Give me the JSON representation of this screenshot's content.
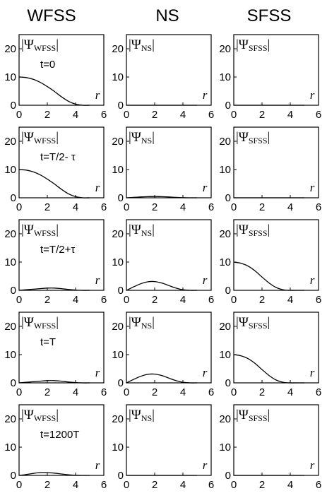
{
  "figure": {
    "column_titles": [
      "WFSS",
      "NS",
      "SFSS"
    ]
  },
  "chart_data": [
    {
      "type": "line",
      "row": 0,
      "col": 0,
      "label": "|Ψ",
      "label_sub": "WFSS",
      "time_label": "t=0",
      "xlabel": "r",
      "xlim": [
        0,
        6
      ],
      "ylim": [
        0,
        25
      ],
      "xticks": [
        "0",
        "2",
        "4",
        "6"
      ],
      "yticks": [
        "0",
        "10",
        "20"
      ],
      "series": [
        {
          "x": [
            0,
            0.5,
            1,
            1.5,
            2,
            2.5,
            3,
            3.5,
            4,
            4.5,
            5
          ],
          "y": [
            10,
            9.8,
            9.2,
            8.1,
            6.6,
            4.9,
            3.0,
            1.4,
            0.4,
            0,
            0
          ]
        }
      ]
    },
    {
      "type": "line",
      "row": 0,
      "col": 1,
      "label": "|Ψ",
      "label_sub": "NS",
      "time_label": "",
      "xlabel": "r",
      "xlim": [
        0,
        6
      ],
      "ylim": [
        0,
        25
      ],
      "xticks": [
        "0",
        "2",
        "4",
        "6"
      ],
      "yticks": [
        "0",
        "10",
        "20"
      ],
      "series": [
        {
          "x": [
            0,
            5
          ],
          "y": [
            0,
            0
          ]
        }
      ]
    },
    {
      "type": "line",
      "row": 0,
      "col": 2,
      "label": "|Ψ",
      "label_sub": "SFSS",
      "time_label": "",
      "xlabel": "r",
      "xlim": [
        0,
        6
      ],
      "ylim": [
        0,
        25
      ],
      "xticks": [
        "0",
        "2",
        "4",
        "6"
      ],
      "yticks": [
        "0",
        "10",
        "20"
      ],
      "series": [
        {
          "x": [
            0,
            5
          ],
          "y": [
            0,
            0
          ]
        }
      ]
    },
    {
      "type": "line",
      "row": 1,
      "col": 0,
      "label": "|Ψ",
      "label_sub": "WFSS",
      "time_label": "t=T/2- τ",
      "xlabel": "r",
      "xlim": [
        0,
        6
      ],
      "ylim": [
        0,
        25
      ],
      "xticks": [
        "0",
        "2",
        "4",
        "6"
      ],
      "yticks": [
        "0",
        "10",
        "20"
      ],
      "series": [
        {
          "x": [
            0,
            0.5,
            1,
            1.5,
            2,
            2.5,
            3,
            3.5,
            4,
            4.5,
            5
          ],
          "y": [
            10,
            9.8,
            9.2,
            8.1,
            6.6,
            4.9,
            3.0,
            1.4,
            0.4,
            0,
            0
          ]
        }
      ]
    },
    {
      "type": "line",
      "row": 1,
      "col": 1,
      "label": "|Ψ",
      "label_sub": "NS",
      "time_label": "",
      "xlabel": "r",
      "xlim": [
        0,
        6
      ],
      "ylim": [
        0,
        25
      ],
      "xticks": [
        "0",
        "2",
        "4",
        "6"
      ],
      "yticks": [
        "0",
        "10",
        "20"
      ],
      "series": [
        {
          "x": [
            0,
            0.5,
            1,
            1.5,
            2,
            2.5,
            3,
            3.5,
            4,
            4.5,
            5
          ],
          "y": [
            0,
            0.15,
            0.3,
            0.4,
            0.45,
            0.4,
            0.3,
            0.15,
            0.05,
            0,
            0
          ]
        }
      ]
    },
    {
      "type": "line",
      "row": 1,
      "col": 2,
      "label": "|Ψ",
      "label_sub": "SFSS",
      "time_label": "",
      "xlabel": "r",
      "xlim": [
        0,
        6
      ],
      "ylim": [
        0,
        25
      ],
      "xticks": [
        "0",
        "2",
        "4",
        "6"
      ],
      "yticks": [
        "0",
        "10",
        "20"
      ],
      "series": [
        {
          "x": [
            0,
            5
          ],
          "y": [
            0,
            0
          ]
        }
      ]
    },
    {
      "type": "line",
      "row": 2,
      "col": 0,
      "label": "|Ψ",
      "label_sub": "WFSS",
      "time_label": "t=T/2+τ",
      "xlabel": "r",
      "xlim": [
        0,
        6
      ],
      "ylim": [
        0,
        25
      ],
      "xticks": [
        "0",
        "2",
        "4",
        "6"
      ],
      "yticks": [
        "0",
        "10",
        "20"
      ],
      "series": [
        {
          "x": [
            0,
            0.5,
            1,
            1.5,
            2,
            2.5,
            3,
            3.5,
            4,
            4.5,
            5
          ],
          "y": [
            0,
            0.2,
            0.4,
            0.6,
            0.8,
            0.8,
            0.6,
            0.3,
            0.1,
            0,
            0
          ]
        }
      ]
    },
    {
      "type": "line",
      "row": 2,
      "col": 1,
      "label": "|Ψ",
      "label_sub": "NS",
      "time_label": "",
      "xlabel": "r",
      "xlim": [
        0,
        6
      ],
      "ylim": [
        0,
        25
      ],
      "xticks": [
        "0",
        "2",
        "4",
        "6"
      ],
      "yticks": [
        "0",
        "10",
        "20"
      ],
      "series": [
        {
          "x": [
            0,
            0.5,
            1,
            1.5,
            2,
            2.5,
            3,
            3.5,
            4,
            4.5,
            5
          ],
          "y": [
            0,
            1.2,
            2.3,
            3.0,
            3.1,
            2.6,
            1.7,
            0.8,
            0.2,
            0,
            0
          ]
        }
      ]
    },
    {
      "type": "line",
      "row": 2,
      "col": 2,
      "label": "|Ψ",
      "label_sub": "SFSS",
      "time_label": "",
      "xlabel": "r",
      "xlim": [
        0,
        6
      ],
      "ylim": [
        0,
        25
      ],
      "xticks": [
        "0",
        "2",
        "4",
        "6"
      ],
      "yticks": [
        "0",
        "10",
        "20"
      ],
      "series": [
        {
          "x": [
            0,
            0.5,
            1,
            1.5,
            2,
            2.5,
            3,
            3.5,
            4,
            4.5,
            5
          ],
          "y": [
            10,
            9.6,
            8.6,
            6.9,
            4.7,
            2.6,
            1.0,
            0.2,
            0,
            0,
            0
          ]
        }
      ]
    },
    {
      "type": "line",
      "row": 3,
      "col": 0,
      "label": "|Ψ",
      "label_sub": "WFSS",
      "time_label": "t=T",
      "xlabel": "r",
      "xlim": [
        0,
        6
      ],
      "ylim": [
        0,
        25
      ],
      "xticks": [
        "0",
        "2",
        "4",
        "6"
      ],
      "yticks": [
        "0",
        "10",
        "20"
      ],
      "series": [
        {
          "x": [
            0,
            0.5,
            1,
            1.5,
            2,
            2.5,
            3,
            3.5,
            4,
            4.5,
            5
          ],
          "y": [
            0,
            0.2,
            0.4,
            0.6,
            0.8,
            0.8,
            0.6,
            0.3,
            0.1,
            0,
            0
          ]
        }
      ]
    },
    {
      "type": "line",
      "row": 3,
      "col": 1,
      "label": "|Ψ",
      "label_sub": "NS",
      "time_label": "",
      "xlabel": "r",
      "xlim": [
        0,
        6
      ],
      "ylim": [
        0,
        25
      ],
      "xticks": [
        "0",
        "2",
        "4",
        "6"
      ],
      "yticks": [
        "0",
        "10",
        "20"
      ],
      "series": [
        {
          "x": [
            0,
            0.5,
            1,
            1.5,
            2,
            2.5,
            3,
            3.5,
            4,
            4.5,
            5
          ],
          "y": [
            0,
            1.2,
            2.3,
            3.0,
            3.1,
            2.6,
            1.7,
            0.8,
            0.2,
            0,
            0
          ]
        }
      ]
    },
    {
      "type": "line",
      "row": 3,
      "col": 2,
      "label": "|Ψ",
      "label_sub": "SFSS",
      "time_label": "",
      "xlabel": "r",
      "xlim": [
        0,
        6
      ],
      "ylim": [
        0,
        25
      ],
      "xticks": [
        "0",
        "2",
        "4",
        "6"
      ],
      "yticks": [
        "0",
        "10",
        "20"
      ],
      "series": [
        {
          "x": [
            0,
            0.5,
            1,
            1.5,
            2,
            2.5,
            3,
            3.5,
            4,
            4.5,
            5
          ],
          "y": [
            10,
            9.6,
            8.6,
            6.9,
            4.7,
            2.6,
            1.0,
            0.2,
            0,
            0,
            0
          ]
        }
      ]
    },
    {
      "type": "line",
      "row": 4,
      "col": 0,
      "label": "|Ψ",
      "label_sub": "WFSS",
      "time_label": "t=1200T",
      "xlabel": "r",
      "xlim": [
        0,
        6
      ],
      "ylim": [
        0,
        25
      ],
      "xticks": [
        "0",
        "2",
        "4",
        "6"
      ],
      "yticks": [
        "0",
        "10",
        "20"
      ],
      "series": [
        {
          "x": [
            0,
            0.5,
            1,
            1.5,
            2,
            2.5,
            3,
            3.5,
            4,
            4.5,
            5
          ],
          "y": [
            0,
            0.3,
            0.7,
            1.0,
            1.0,
            0.8,
            0.5,
            0.2,
            0.05,
            0,
            0
          ]
        }
      ]
    },
    {
      "type": "line",
      "row": 4,
      "col": 1,
      "label": "|Ψ",
      "label_sub": "NS",
      "time_label": "",
      "xlabel": "r",
      "xlim": [
        0,
        6
      ],
      "ylim": [
        0,
        25
      ],
      "xticks": [
        "0",
        "2",
        "4",
        "6"
      ],
      "yticks": [
        "0",
        "10",
        "20"
      ],
      "series": [
        {
          "x": [
            0,
            5
          ],
          "y": [
            0,
            0
          ]
        }
      ]
    },
    {
      "type": "line",
      "row": 4,
      "col": 2,
      "label": "|Ψ",
      "label_sub": "SFSS",
      "time_label": "",
      "xlabel": "r",
      "xlim": [
        0,
        6
      ],
      "ylim": [
        0,
        25
      ],
      "xticks": [
        "0",
        "2",
        "4",
        "6"
      ],
      "yticks": [
        "0",
        "10",
        "20"
      ],
      "series": [
        {
          "x": [
            0,
            5
          ],
          "y": [
            0,
            0
          ]
        }
      ]
    }
  ]
}
